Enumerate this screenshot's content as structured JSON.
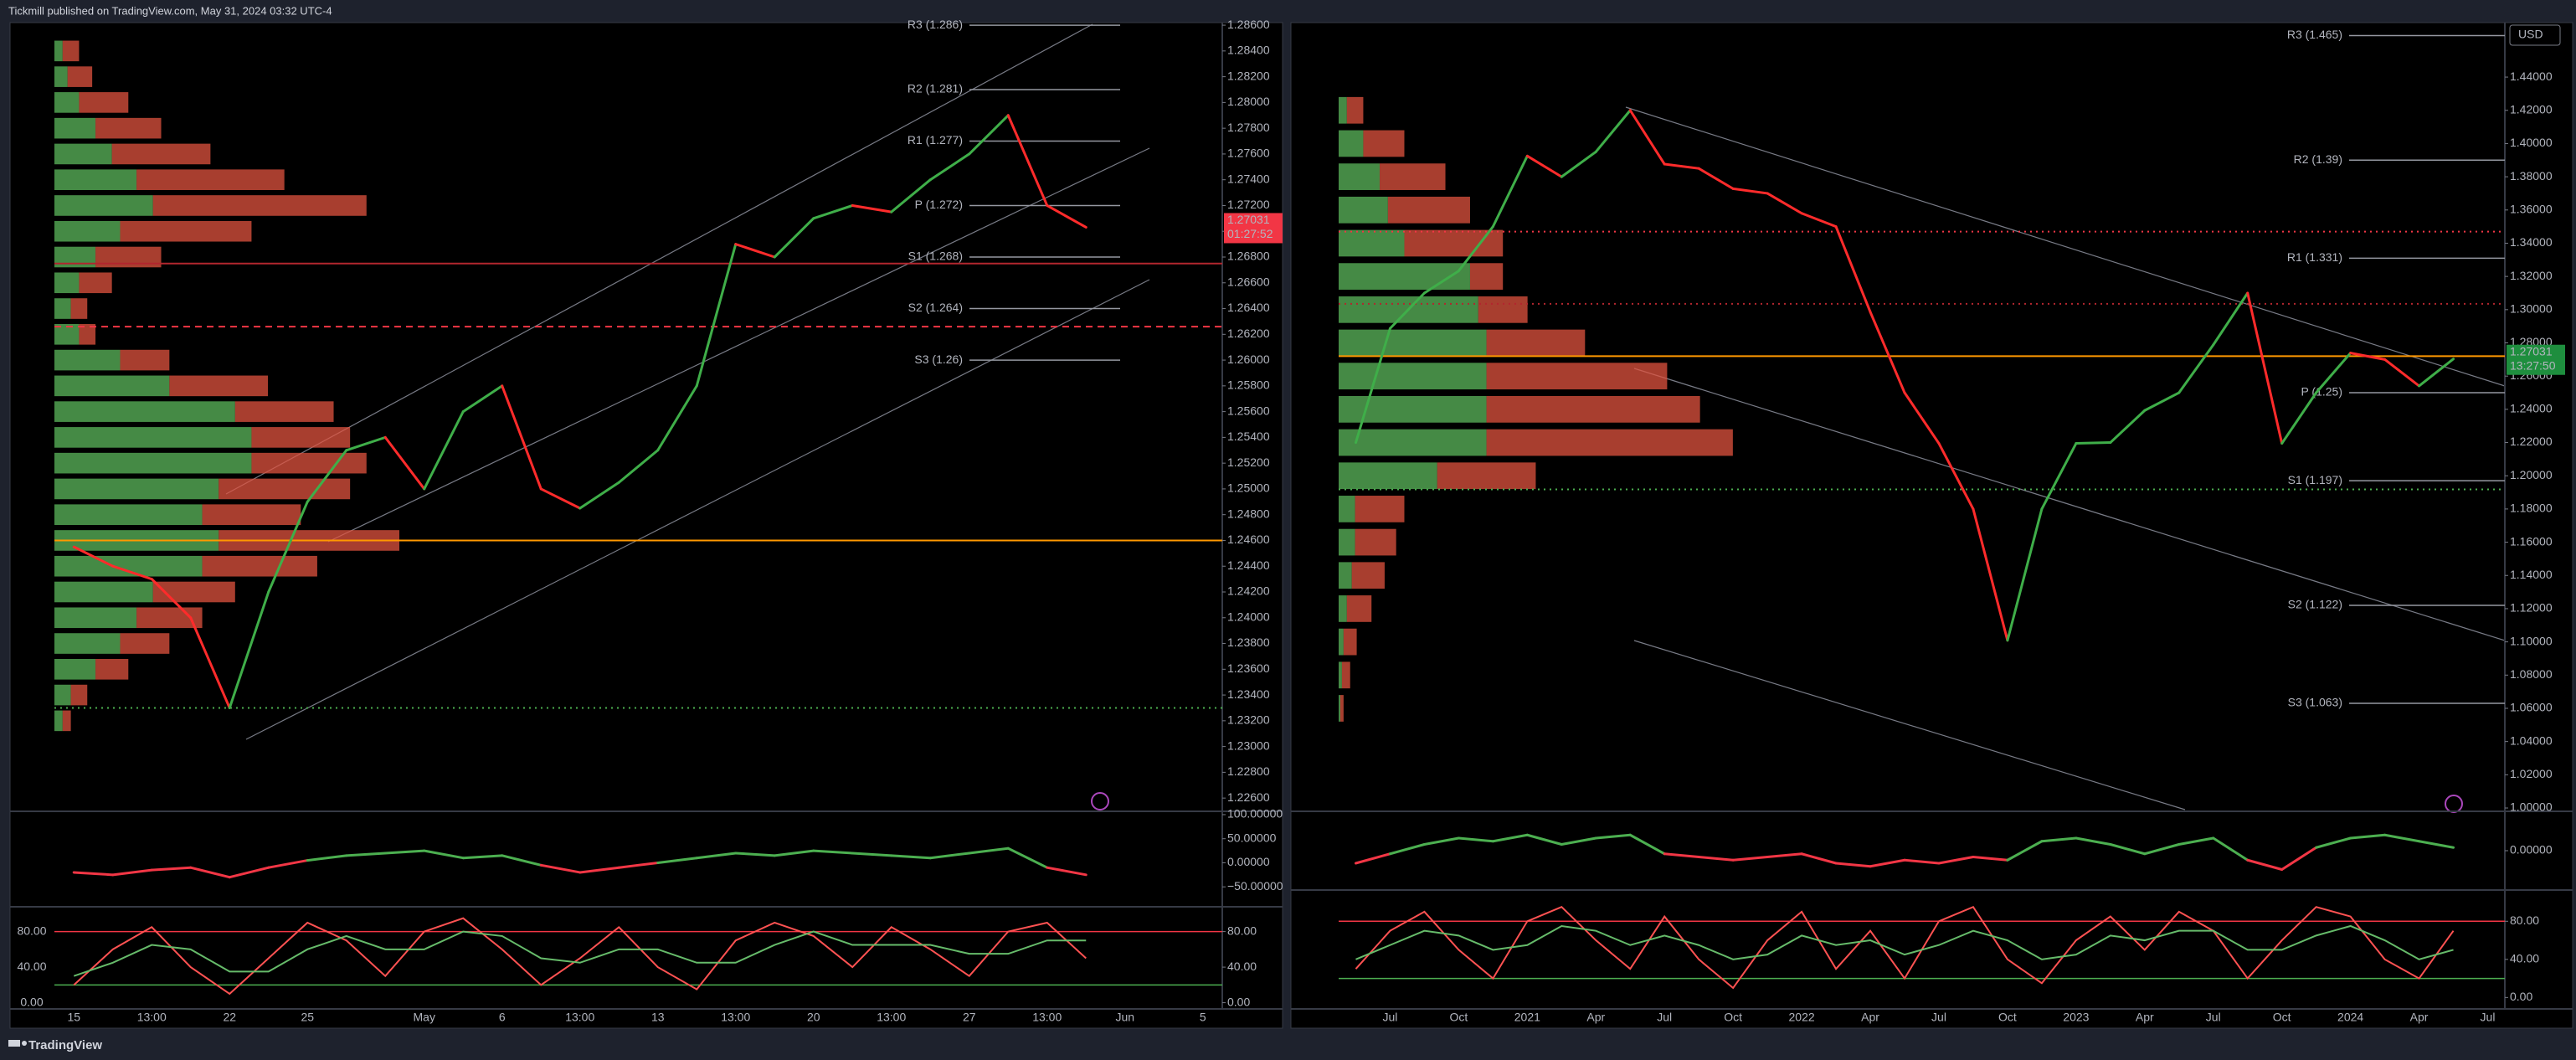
{
  "header": {
    "text": "Tickmill published on TradingView.com, May 31, 2024 03:32 UTC-4"
  },
  "footer": {
    "brand": "TradingView"
  },
  "chart_data": [
    {
      "type": "line",
      "categories": [
        "15",
        null,
        "13:00",
        null,
        "22",
        null,
        "25",
        null,
        null,
        "May",
        null,
        "6",
        null,
        "13:00",
        null,
        "13",
        null,
        "13:00",
        null,
        "20",
        null,
        "13:00",
        null,
        "27",
        null,
        "13:00",
        null,
        "Jun",
        null,
        "5"
      ],
      "series": [
        {
          "color": "#3fae49",
          "down_color": "#ff2b2b",
          "values": [
            1.2455,
            1.244,
            1.243,
            1.24,
            1.233,
            1.242,
            1.249,
            1.253,
            1.254,
            1.25,
            1.256,
            1.258,
            1.25,
            1.2485,
            1.2505,
            1.253,
            1.258,
            1.269,
            1.268,
            1.271,
            1.272,
            1.2715,
            1.274,
            1.276,
            1.279,
            1.272,
            1.27031,
            null,
            null,
            null
          ]
        }
      ],
      "ylim": [
        1.2251,
        1.2862
      ],
      "yticks": [
        {
          "value": 1.226,
          "label": "1.22600"
        },
        {
          "value": 1.228,
          "label": "1.22800"
        },
        {
          "value": 1.23,
          "label": "1.23000"
        },
        {
          "value": 1.232,
          "label": "1.23200"
        },
        {
          "value": 1.234,
          "label": "1.23400"
        },
        {
          "value": 1.236,
          "label": "1.23600"
        },
        {
          "value": 1.238,
          "label": "1.23800"
        },
        {
          "value": 1.24,
          "label": "1.24000"
        },
        {
          "value": 1.242,
          "label": "1.24200"
        },
        {
          "value": 1.244,
          "label": "1.24400"
        },
        {
          "value": 1.246,
          "label": "1.24600"
        },
        {
          "value": 1.248,
          "label": "1.24800"
        },
        {
          "value": 1.25,
          "label": "1.25000"
        },
        {
          "value": 1.252,
          "label": "1.25200"
        },
        {
          "value": 1.254,
          "label": "1.25400"
        },
        {
          "value": 1.256,
          "label": "1.25600"
        },
        {
          "value": 1.258,
          "label": "1.25800"
        },
        {
          "value": 1.26,
          "label": "1.26000"
        },
        {
          "value": 1.262,
          "label": "1.26200"
        },
        {
          "value": 1.264,
          "label": "1.26400"
        },
        {
          "value": 1.266,
          "label": "1.26600"
        },
        {
          "value": 1.268,
          "label": "1.26800"
        },
        {
          "value": 1.27,
          "label": "1.27000"
        },
        {
          "value": 1.272,
          "label": "1.27200"
        },
        {
          "value": 1.274,
          "label": "1.27400"
        },
        {
          "value": 1.276,
          "label": "1.27600"
        },
        {
          "value": 1.278,
          "label": "1.27800"
        },
        {
          "value": 1.28,
          "label": "1.28000"
        },
        {
          "value": 1.282,
          "label": "1.28200"
        },
        {
          "value": 1.284,
          "label": "1.28400"
        },
        {
          "value": 1.286,
          "label": "1.28600"
        }
      ],
      "last_price": 1.27031,
      "countdown": "01:27:52",
      "last_price_color": "#f23645",
      "pivots": [
        {
          "label": "R3 (1.286)",
          "value": 1.286
        },
        {
          "label": "R2 (1.281)",
          "value": 1.281
        },
        {
          "label": "R1 (1.277)",
          "value": 1.277
        },
        {
          "label": "P (1.272)",
          "value": 1.272
        },
        {
          "label": "S1 (1.268)",
          "value": 1.268
        },
        {
          "label": "S2 (1.264)",
          "value": 1.264
        },
        {
          "label": "S3 (1.26)",
          "value": 1.26
        }
      ],
      "levels": [
        {
          "value": 1.246,
          "color": "#ff9800",
          "style": "solid"
        },
        {
          "value": 1.2626,
          "color": "#f23645",
          "style": "dashed"
        },
        {
          "value": 1.233,
          "color": "#4caf50",
          "style": "dotted"
        },
        {
          "value": 1.2675,
          "color": "#b2262e",
          "style": "solid"
        }
      ],
      "volume_profile": {
        "up_color": "#5cb85c",
        "down_color": "#e0533f",
        "prices": [
          1.232,
          1.234,
          1.236,
          1.238,
          1.24,
          1.242,
          1.244,
          1.246,
          1.248,
          1.25,
          1.252,
          1.254,
          1.256,
          1.258,
          1.26,
          1.262,
          1.264,
          1.266,
          1.268,
          1.27,
          1.272,
          1.274,
          1.276,
          1.278,
          1.28,
          1.282,
          1.284
        ],
        "up": [
          5,
          10,
          25,
          40,
          50,
          60,
          90,
          100,
          90,
          100,
          120,
          120,
          110,
          70,
          40,
          15,
          10,
          15,
          25,
          40,
          60,
          50,
          35,
          25,
          15,
          8,
          5
        ],
        "down": [
          5,
          10,
          20,
          30,
          40,
          50,
          70,
          110,
          60,
          80,
          70,
          60,
          60,
          60,
          30,
          10,
          10,
          20,
          40,
          80,
          130,
          90,
          60,
          40,
          30,
          15,
          10
        ]
      },
      "oscillator": {
        "ylim": [
          -87.9,
          103.4
        ],
        "up_color": "#4caf50",
        "down_color": "#f23645",
        "yticks": [
          {
            "value": 100,
            "label": "100.00000"
          },
          {
            "value": 50,
            "label": "50.00000"
          },
          {
            "value": 0,
            "label": "0.00000"
          },
          {
            "value": -50,
            "label": "−50.00000"
          }
        ],
        "values": [
          -20,
          -25,
          -15,
          -10,
          -30,
          -10,
          5,
          15,
          20,
          25,
          10,
          15,
          -5,
          -20,
          -10,
          0,
          10,
          20,
          15,
          25,
          20,
          15,
          10,
          20,
          30,
          -10,
          -25,
          null,
          null,
          null
        ]
      },
      "stochastic": {
        "ylim": [
          -7,
          106
        ],
        "yticks": [
          {
            "value": 80,
            "label": "80.00"
          },
          {
            "value": 40,
            "label": "40.00"
          },
          {
            "value": 0,
            "label": "0.00"
          }
        ],
        "bands": [
          {
            "value": 80,
            "color": "#f23645"
          },
          {
            "value": 20,
            "color": "#4caf50"
          }
        ],
        "k": {
          "color": "#ff5252",
          "values": [
            20,
            60,
            85,
            40,
            10,
            50,
            90,
            70,
            30,
            80,
            95,
            60,
            20,
            50,
            85,
            40,
            15,
            70,
            90,
            75,
            40,
            85,
            60,
            30,
            80,
            90,
            50,
            null,
            null,
            null
          ]
        },
        "d": {
          "color": "#66bb6a",
          "values": [
            30,
            45,
            65,
            60,
            35,
            35,
            60,
            75,
            60,
            60,
            80,
            75,
            50,
            45,
            60,
            60,
            45,
            45,
            65,
            80,
            65,
            65,
            65,
            55,
            55,
            70,
            70,
            null,
            null,
            null
          ]
        }
      }
    },
    {
      "type": "line",
      "categories": [
        null,
        "Jul",
        null,
        "Oct",
        null,
        "2021",
        null,
        "Apr",
        null,
        "Jul",
        null,
        "Oct",
        null,
        "2022",
        null,
        "Apr",
        null,
        "Jul",
        null,
        "Oct",
        null,
        "2023",
        null,
        "Apr",
        null,
        "Jul",
        null,
        "Oct",
        null,
        "2024",
        null,
        "Apr",
        null,
        "Jul"
      ],
      "series": [
        {
          "color": "#3fae49",
          "down_color": "#ff2b2b",
          "values": [
            1.22,
            1.2887,
            1.31,
            1.3233,
            1.35,
            1.3925,
            1.38,
            1.395,
            1.42,
            1.3876,
            1.385,
            1.3728,
            1.37,
            1.358,
            1.35,
            1.2986,
            1.25,
            1.2195,
            1.18,
            1.1009,
            1.18,
            1.2195,
            1.22,
            1.2393,
            1.25,
            1.2788,
            1.31,
            1.2195,
            1.25,
            1.2739,
            1.27,
            1.2541,
            1.27031,
            null
          ]
        }
      ],
      "ylim": [
        0.999,
        1.4728
      ],
      "yticks": [
        {
          "value": 1.0,
          "label": "1.00000"
        },
        {
          "value": 1.02,
          "label": "1.02000"
        },
        {
          "value": 1.04,
          "label": "1.04000"
        },
        {
          "value": 1.06,
          "label": "1.06000"
        },
        {
          "value": 1.08,
          "label": "1.08000"
        },
        {
          "value": 1.1,
          "label": "1.10000"
        },
        {
          "value": 1.12,
          "label": "1.12000"
        },
        {
          "value": 1.14,
          "label": "1.14000"
        },
        {
          "value": 1.16,
          "label": "1.16000"
        },
        {
          "value": 1.18,
          "label": "1.18000"
        },
        {
          "value": 1.2,
          "label": "1.20000"
        },
        {
          "value": 1.22,
          "label": "1.22000"
        },
        {
          "value": 1.24,
          "label": "1.24000"
        },
        {
          "value": 1.26,
          "label": "1.26000"
        },
        {
          "value": 1.28,
          "label": "1.28000"
        },
        {
          "value": 1.3,
          "label": "1.30000"
        },
        {
          "value": 1.32,
          "label": "1.32000"
        },
        {
          "value": 1.34,
          "label": "1.34000"
        },
        {
          "value": 1.36,
          "label": "1.36000"
        },
        {
          "value": 1.38,
          "label": "1.38000"
        },
        {
          "value": 1.4,
          "label": "1.40000"
        },
        {
          "value": 1.42,
          "label": "1.42000"
        },
        {
          "value": 1.44,
          "label": "1.44000"
        }
      ],
      "last_price": 1.27031,
      "countdown": "13:27:50",
      "last_price_color": "#1e8e3e",
      "currency": "USD",
      "pivots": [
        {
          "label": "R3 (1.465)",
          "value": 1.465
        },
        {
          "label": "R2 (1.39)",
          "value": 1.39
        },
        {
          "label": "R1 (1.331)",
          "value": 1.331
        },
        {
          "label": "P (1.25)",
          "value": 1.25
        },
        {
          "label": "S1 (1.197)",
          "value": 1.197
        },
        {
          "label": "S2 (1.122)",
          "value": 1.122
        },
        {
          "label": "S3 (1.063)",
          "value": 1.063
        }
      ],
      "levels": [
        {
          "value": 1.272,
          "color": "#ff9800",
          "style": "solid"
        },
        {
          "value": 1.347,
          "color": "#f23645",
          "style": "dotted"
        },
        {
          "value": 1.3035,
          "color": "#b2262e",
          "style": "dotted"
        },
        {
          "value": 1.1918,
          "color": "#4caf50",
          "style": "dotted"
        }
      ],
      "volume_profile": {
        "up_color": "#5cb85c",
        "down_color": "#e0533f",
        "prices": [
          1.06,
          1.08,
          1.1,
          1.12,
          1.14,
          1.16,
          1.18,
          1.2,
          1.22,
          1.24,
          1.26,
          1.28,
          1.3,
          1.32,
          1.34,
          1.36,
          1.38,
          1.4,
          1.42
        ],
        "up": [
          1,
          2,
          3,
          5,
          8,
          10,
          10,
          60,
          90,
          90,
          90,
          90,
          85,
          80,
          40,
          30,
          25,
          15,
          5
        ],
        "down": [
          2,
          5,
          8,
          15,
          20,
          25,
          30,
          60,
          150,
          130,
          110,
          60,
          30,
          20,
          60,
          50,
          40,
          25,
          10
        ]
      },
      "oscillator": {
        "ylim": [
          -0.012,
          0.012
        ],
        "up_color": "#4caf50",
        "down_color": "#f23645",
        "yticks": [
          {
            "value": 0,
            "label": "0.00000"
          }
        ],
        "values": [
          -0.004,
          -0.001,
          0.002,
          0.004,
          0.003,
          0.005,
          0.002,
          0.004,
          0.005,
          -0.001,
          -0.002,
          -0.003,
          -0.002,
          -0.001,
          -0.004,
          -0.005,
          -0.003,
          -0.004,
          -0.002,
          -0.003,
          0.003,
          0.004,
          0.002,
          -0.001,
          0.002,
          0.004,
          -0.003,
          -0.006,
          0.001,
          0.004,
          0.005,
          0.003,
          0.001,
          null
        ]
      },
      "stochastic": {
        "ylim": [
          -12,
          111
        ],
        "yticks": [
          {
            "value": 80,
            "label": "80.00"
          },
          {
            "value": 40,
            "label": "40.00"
          },
          {
            "value": 0,
            "label": "0.00"
          }
        ],
        "bands": [
          {
            "value": 80,
            "color": "#f23645"
          },
          {
            "value": 20,
            "color": "#4caf50"
          }
        ],
        "k": {
          "color": "#ff5252",
          "values": [
            30,
            70,
            90,
            50,
            20,
            80,
            95,
            60,
            30,
            85,
            40,
            10,
            60,
            90,
            30,
            70,
            20,
            80,
            95,
            40,
            15,
            60,
            85,
            50,
            90,
            70,
            20,
            60,
            95,
            85,
            40,
            20,
            70,
            null
          ]
        },
        "d": {
          "color": "#66bb6a",
          "values": [
            40,
            55,
            70,
            65,
            50,
            55,
            75,
            70,
            55,
            65,
            55,
            40,
            45,
            65,
            55,
            60,
            45,
            55,
            70,
            60,
            40,
            45,
            65,
            60,
            70,
            70,
            50,
            50,
            65,
            75,
            60,
            40,
            50,
            null
          ]
        }
      }
    }
  ]
}
